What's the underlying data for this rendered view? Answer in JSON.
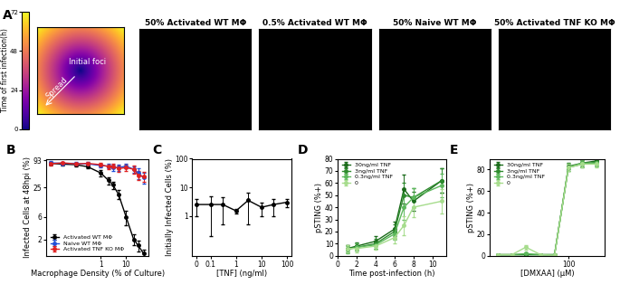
{
  "panel_a": {
    "panel": "A",
    "colorbar": {
      "label": "Time of first infection(h)",
      "clim": [
        0,
        72
      ],
      "ticks": [
        0,
        24,
        48,
        72
      ]
    },
    "annotations": [
      "Initial foci",
      "Spread"
    ],
    "images": [
      {
        "title": "50% Activated WT MΦ"
      },
      {
        "title": "0.5% Activated WT MΦ"
      },
      {
        "title": "50% Naive WT MΦ"
      },
      {
        "title": "50% Activated TNF KO MΦ"
      }
    ]
  },
  "chart_data": [
    {
      "panel": "B",
      "type": "line",
      "log": true,
      "x_label": "Macrophage Density (% of Culture)",
      "y_label": "Infected Cells at 48hpi (%)",
      "x": [
        0.01,
        0.03,
        0.1,
        0.3,
        1,
        2,
        3,
        5,
        10,
        20,
        30,
        50
      ],
      "xlim": [
        0.007,
        80
      ],
      "xticks": [
        1,
        10
      ],
      "ylim": [
        0.9,
        100
      ],
      "yticks": [
        2,
        6,
        25,
        93
      ],
      "legend": "lower left",
      "series": [
        {
          "name": "Activated WT MΦ",
          "color": "#000000",
          "marker": "o",
          "values": [
            80,
            77,
            75,
            68,
            50,
            35,
            28,
            18,
            6,
            2,
            1.5,
            1
          ],
          "yerr": [
            5,
            6,
            5,
            6,
            8,
            6,
            5,
            4,
            2,
            0.5,
            0.4,
            0.2
          ]
        },
        {
          "name": "Naive WT MΦ",
          "color": "#1f4fd8",
          "marker": "o",
          "values": [
            82,
            80,
            80,
            78,
            72,
            70,
            65,
            65,
            70,
            60,
            50,
            40
          ],
          "yerr": [
            6,
            5,
            5,
            6,
            6,
            8,
            10,
            10,
            8,
            10,
            12,
            10
          ]
        },
        {
          "name": "Activated TNF KO MΦ",
          "color": "#e02020",
          "marker": "o",
          "values": [
            78,
            82,
            78,
            80,
            75,
            68,
            70,
            62,
            65,
            60,
            45,
            42
          ],
          "yerr": [
            6,
            5,
            5,
            6,
            6,
            8,
            8,
            10,
            10,
            12,
            10,
            10
          ]
        }
      ]
    },
    {
      "panel": "C",
      "type": "line",
      "log": true,
      "x_label": "[TNF] (ng/ml)",
      "y_label": "Initially Infected Cells (%)",
      "x": [
        0,
        0.1,
        0.3,
        1,
        3,
        10,
        30,
        100
      ],
      "xlim": [
        -0.03,
        150
      ],
      "xticks": [
        0,
        0.1,
        1,
        10,
        100
      ],
      "ylim": [
        0.04,
        100
      ],
      "yticks": [
        1,
        10,
        100
      ],
      "series": [
        {
          "name": "",
          "color": "#000000",
          "marker": "o",
          "values": [
            2.5,
            2.5,
            2.5,
            1.5,
            3.5,
            2,
            2.5,
            3
          ],
          "yerr": [
            1.5,
            2.3,
            2,
            0.3,
            3,
            1,
            1.5,
            1
          ]
        }
      ]
    },
    {
      "panel": "D",
      "type": "line",
      "x_label": "Time post-infection (h)",
      "y_label": "pSTING (%+)",
      "x": [
        1,
        2,
        4,
        6,
        7,
        8,
        11
      ],
      "xlim": [
        0,
        11.5
      ],
      "xticks": [
        0,
        2,
        4,
        6,
        8,
        10
      ],
      "ylim": [
        0,
        80
      ],
      "yticks": [
        0,
        10,
        20,
        30,
        40,
        50,
        60,
        70,
        80
      ],
      "legend": "upper left",
      "series": [
        {
          "name": "30ng/ml TNF",
          "color": "#1a6b1a",
          "marker": "o",
          "values": [
            6,
            8,
            12,
            22,
            55,
            45,
            62
          ],
          "yerr": [
            3,
            3,
            4,
            6,
            12,
            8,
            10
          ]
        },
        {
          "name": "3ng/ml TNF",
          "color": "#2e8b2e",
          "marker": "o",
          "values": [
            6,
            7,
            10,
            20,
            50,
            48,
            62
          ],
          "yerr": [
            3,
            3,
            4,
            6,
            10,
            8,
            10
          ]
        },
        {
          "name": "0.3ng/ml TNF",
          "color": "#5cb85c",
          "marker": "o",
          "values": [
            5,
            7,
            9,
            18,
            40,
            48,
            58
          ],
          "yerr": [
            3,
            3,
            3,
            5,
            10,
            8,
            10
          ]
        },
        {
          "name": "0",
          "color": "#a6dc8c",
          "marker": "o",
          "values": [
            6,
            6,
            8,
            15,
            25,
            40,
            45
          ],
          "yerr": [
            3,
            3,
            3,
            5,
            8,
            8,
            10
          ]
        }
      ]
    },
    {
      "panel": "E",
      "type": "line",
      "log": "x",
      "x_label": "[DMXAA] (μM)",
      "y_label": "pSTING (%+)",
      "x": [
        3,
        6,
        12,
        25,
        50,
        100,
        200,
        400
      ],
      "xlim": [
        2,
        600
      ],
      "xticks": [
        100
      ],
      "ylim": [
        0,
        90
      ],
      "yticks": [
        0,
        20,
        40,
        60,
        80
      ],
      "legend": "upper left",
      "series": [
        {
          "name": "30ng/ml TNF",
          "color": "#1a6b1a",
          "marker": "o",
          "values": [
            1,
            1,
            1,
            1,
            1,
            83,
            86,
            88
          ],
          "yerr": [
            0.5,
            0.5,
            0.5,
            0.5,
            0.5,
            3,
            3,
            3
          ]
        },
        {
          "name": "3ng/ml TNF",
          "color": "#2e8b2e",
          "marker": "o",
          "values": [
            1,
            1,
            1,
            1,
            1,
            82,
            85,
            87
          ],
          "yerr": [
            0.5,
            0.5,
            0.5,
            0.5,
            0.5,
            3,
            3,
            3
          ]
        },
        {
          "name": "0.3ng/ml TNF",
          "color": "#5cb85c",
          "marker": "o",
          "values": [
            1,
            1,
            2,
            1,
            1,
            82,
            86,
            86
          ],
          "yerr": [
            0.5,
            0.5,
            1,
            0.5,
            0.5,
            3,
            3,
            3
          ]
        },
        {
          "name": "0",
          "color": "#a6dc8c",
          "marker": "o",
          "values": [
            1,
            1,
            8,
            1,
            0.5,
            82,
            85,
            85
          ],
          "yerr": [
            0.5,
            0.5,
            2,
            0.5,
            0.5,
            3,
            3,
            3
          ]
        }
      ]
    }
  ]
}
